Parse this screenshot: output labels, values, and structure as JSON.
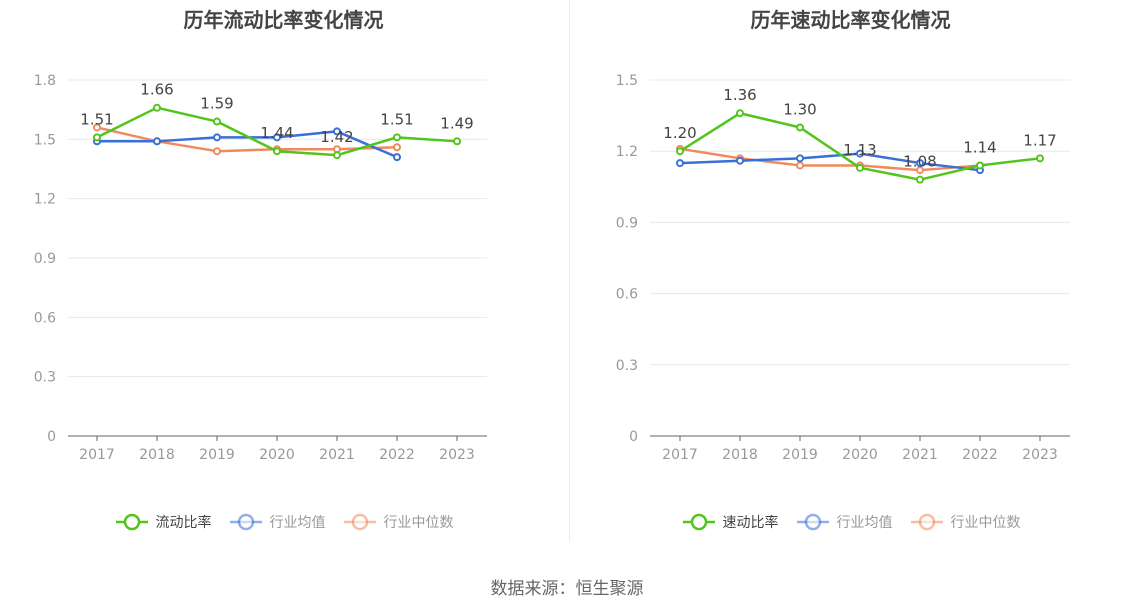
{
  "source_text": "数据来源：恒生聚源",
  "chart_data": [
    {
      "type": "line",
      "title": "历年流动比率变化情况",
      "categories": [
        "2017",
        "2018",
        "2019",
        "2020",
        "2021",
        "2022",
        "2023"
      ],
      "ylim": [
        0,
        1.8
      ],
      "yticks": [
        "0",
        "0.3",
        "0.6",
        "0.9",
        "1.2",
        "1.5",
        "1.8"
      ],
      "ytick_values": [
        0,
        0.3,
        0.6,
        0.9,
        1.2,
        1.5,
        1.8
      ],
      "grid": true,
      "legend_position": "bottom",
      "series": [
        {
          "name": "流动比率",
          "color": "#52c41a",
          "values": [
            1.51,
            1.66,
            1.59,
            1.44,
            1.42,
            1.51,
            1.49
          ],
          "labels": [
            "1.51",
            "1.66",
            "1.59",
            "1.44",
            "1.42",
            "1.51",
            "1.49"
          ]
        },
        {
          "name": "行业均值",
          "color": "#3a6fd8",
          "values": [
            1.49,
            1.49,
            1.51,
            1.51,
            1.54,
            1.41,
            null
          ]
        },
        {
          "name": "行业中位数",
          "color": "#f08a5d",
          "values": [
            1.56,
            1.49,
            1.44,
            1.45,
            1.45,
            1.46,
            null
          ]
        }
      ]
    },
    {
      "type": "line",
      "title": "历年速动比率变化情况",
      "categories": [
        "2017",
        "2018",
        "2019",
        "2020",
        "2021",
        "2022",
        "2023"
      ],
      "ylim": [
        0,
        1.5
      ],
      "yticks": [
        "0",
        "0.3",
        "0.6",
        "0.9",
        "1.2",
        "1.5"
      ],
      "ytick_values": [
        0,
        0.3,
        0.6,
        0.9,
        1.2,
        1.5
      ],
      "grid": true,
      "legend_position": "bottom",
      "series": [
        {
          "name": "速动比率",
          "color": "#52c41a",
          "values": [
            1.2,
            1.36,
            1.3,
            1.13,
            1.08,
            1.14,
            1.17
          ],
          "labels": [
            "1.20",
            "1.36",
            "1.30",
            "1.13",
            "1.08",
            "1.14",
            "1.17"
          ]
        },
        {
          "name": "行业均值",
          "color": "#3a6fd8",
          "values": [
            1.15,
            1.16,
            1.17,
            1.19,
            1.15,
            1.12,
            null
          ]
        },
        {
          "name": "行业中位数",
          "color": "#f08a5d",
          "values": [
            1.21,
            1.17,
            1.14,
            1.14,
            1.12,
            1.14,
            null
          ]
        }
      ]
    }
  ]
}
